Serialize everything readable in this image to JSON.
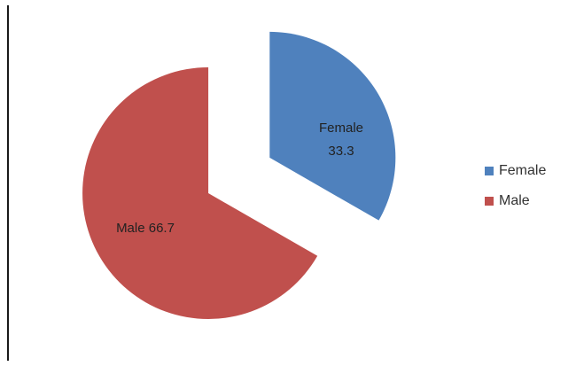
{
  "chart_data": {
    "type": "pie",
    "title": "",
    "categories": [
      "Female",
      "Male"
    ],
    "values": [
      33.3,
      66.7
    ],
    "colors": [
      "#4f81bd",
      "#c0504d"
    ],
    "data_labels": [
      {
        "name": "Female",
        "value": "33.3"
      },
      {
        "name": "Male",
        "value": "66.7"
      }
    ],
    "exploded": true,
    "legend_position": "right",
    "legend": [
      {
        "label": "Female",
        "color": "#4f81bd"
      },
      {
        "label": "Male",
        "color": "#c0504d"
      }
    ]
  }
}
